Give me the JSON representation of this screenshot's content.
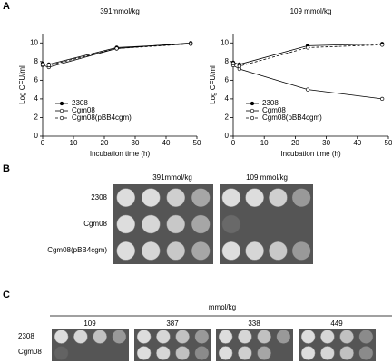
{
  "panel_labels": [
    "A",
    "B",
    "C"
  ],
  "chart_data": [
    {
      "type": "line",
      "title": "391mmol/kg",
      "xlabel": "Incubation time (h)",
      "ylabel": "Log CFU/ml",
      "x": [
        0,
        2,
        24,
        48
      ],
      "xlim": [
        0,
        50
      ],
      "xticks": [
        0,
        10,
        20,
        30,
        40,
        50
      ],
      "ylim": [
        0,
        11
      ],
      "yticks": [
        0,
        2,
        4,
        6,
        8,
        10
      ],
      "series": [
        {
          "name": "2308",
          "color": "#000000",
          "marker": "filled",
          "dashed": false,
          "values": [
            7.8,
            7.7,
            9.5,
            9.9
          ]
        },
        {
          "name": "Cgm08",
          "color": "#000000",
          "marker": "open",
          "dashed": false,
          "values": [
            7.6,
            7.4,
            9.4,
            10.0
          ]
        },
        {
          "name": "Cgm08(pBB4cgm)",
          "color": "#000000",
          "marker": "open",
          "dashed": true,
          "values": [
            7.7,
            7.6,
            9.4,
            9.9
          ]
        }
      ]
    },
    {
      "type": "line",
      "title": "109 mmol/kg",
      "xlabel": "Incubation time (h)",
      "ylabel": "Log CFU/ml",
      "x": [
        0,
        2,
        24,
        48
      ],
      "xlim": [
        0,
        50
      ],
      "xticks": [
        0,
        10,
        20,
        30,
        40,
        50
      ],
      "ylim": [
        0,
        11
      ],
      "yticks": [
        0,
        2,
        4,
        6,
        8,
        10
      ],
      "series": [
        {
          "name": "2308",
          "color": "#000000",
          "marker": "filled",
          "dashed": false,
          "values": [
            7.9,
            7.7,
            9.7,
            9.9
          ]
        },
        {
          "name": "Cgm08",
          "color": "#000000",
          "marker": "open",
          "dashed": false,
          "values": [
            7.6,
            7.2,
            5.0,
            4.0
          ]
        },
        {
          "name": "Cgm08(pBB4cgm)",
          "color": "#000000",
          "marker": "open",
          "dashed": true,
          "values": [
            7.8,
            7.5,
            9.5,
            9.8
          ]
        }
      ]
    }
  ],
  "panel_b": {
    "titles": [
      "391mmol/kg",
      "109 mmol/kg"
    ],
    "rows": [
      "2308",
      "Cgm08",
      "Cgm08(pBB4cgm)"
    ]
  },
  "panel_c": {
    "unit": "mmol/kg",
    "titles": [
      "109",
      "387",
      "338",
      "449"
    ],
    "rows": [
      "2308",
      "Cgm08"
    ]
  }
}
